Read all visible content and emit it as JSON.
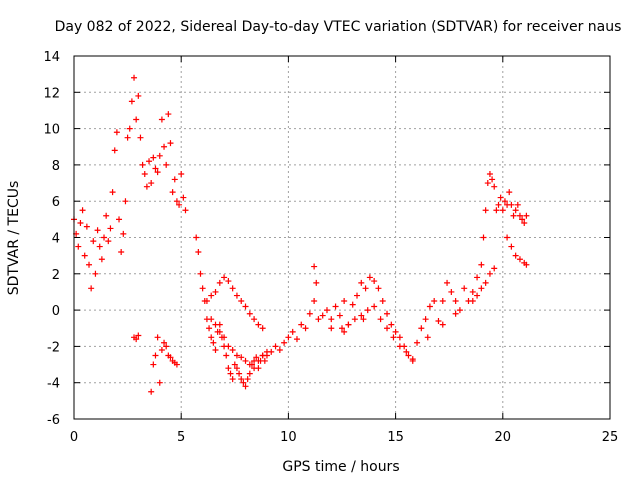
{
  "chart_data": {
    "type": "scatter",
    "title": "Day 082 of 2022, Sidereal Day-to-day VTEC variation (SDTVAR) for receiver naus",
    "xlabel": "GPS time / hours",
    "ylabel": "SDTVAR / TECUs",
    "xlim": [
      0,
      25
    ],
    "ylim": [
      -6,
      14
    ],
    "xticks": [
      "0",
      "5",
      "10",
      "15",
      "20",
      "25"
    ],
    "yticks": [
      "-6",
      "-4",
      "-2",
      "0",
      "2",
      "4",
      "6",
      "8",
      "10",
      "12",
      "14"
    ],
    "grid": true,
    "marker": "+",
    "color": "#ff0000",
    "series": [
      {
        "name": "SDTVAR",
        "x": [
          0.0,
          0.1,
          0.2,
          0.3,
          0.4,
          0.5,
          0.6,
          0.7,
          0.8,
          0.9,
          1.0,
          1.1,
          1.2,
          1.3,
          1.4,
          1.5,
          1.6,
          1.7,
          1.8,
          1.9,
          2.0,
          2.1,
          2.2,
          2.3,
          2.4,
          2.5,
          2.6,
          2.7,
          2.8,
          2.9,
          3.0,
          3.1,
          3.2,
          3.3,
          3.4,
          3.5,
          3.6,
          3.7,
          3.8,
          3.9,
          4.0,
          4.1,
          4.2,
          4.3,
          4.4,
          4.5,
          4.6,
          4.7,
          4.8,
          4.9,
          5.0,
          5.1,
          5.2,
          5.7,
          5.8,
          5.9,
          6.0,
          6.1,
          6.2,
          6.3,
          6.4,
          6.5,
          6.6,
          6.7,
          6.8,
          6.9,
          7.0,
          7.1,
          7.2,
          7.3,
          7.4,
          7.5,
          7.6,
          7.7,
          7.8,
          7.9,
          8.0,
          8.1,
          8.2,
          8.3,
          8.4,
          8.5,
          8.6,
          8.7,
          8.8,
          8.9,
          9.0,
          9.2,
          9.4,
          9.6,
          9.8,
          10.0,
          10.2,
          10.4,
          10.6,
          10.8,
          11.0,
          11.2,
          11.4,
          11.6,
          11.8,
          12.0,
          12.2,
          12.4,
          12.6,
          12.8,
          13.0,
          13.2,
          13.4,
          13.6,
          13.8,
          14.0,
          14.2,
          14.4,
          14.6,
          14.8,
          15.0,
          15.2,
          15.4,
          15.6,
          15.8,
          16.0,
          16.2,
          16.4,
          16.6,
          16.8,
          17.0,
          17.2,
          17.4,
          17.6,
          17.8,
          18.0,
          18.2,
          18.4,
          18.6,
          18.8,
          19.0,
          19.1,
          19.2,
          19.3,
          19.4,
          19.5,
          19.6,
          19.7,
          19.8,
          19.9,
          20.0,
          20.1,
          20.2,
          20.3,
          20.4,
          20.5,
          20.6,
          20.7,
          20.8,
          20.9,
          21.0,
          21.1,
          2.8,
          2.9,
          3.0,
          3.6,
          3.7,
          3.8,
          3.9,
          4.0,
          4.1,
          4.2,
          4.3,
          4.4,
          4.5,
          4.6,
          4.7,
          4.8,
          6.2,
          6.4,
          6.6,
          6.8,
          7.0,
          7.2,
          7.4,
          7.6,
          7.8,
          8.0,
          8.2,
          8.4,
          8.6,
          8.8,
          6.4,
          6.6,
          6.8,
          7.0,
          7.2,
          7.4,
          7.6,
          7.8,
          8.0,
          8.2,
          8.4,
          8.6,
          8.8,
          9.0,
          12.5,
          12.8,
          13.1,
          13.4,
          13.7,
          14.0,
          14.3,
          14.6,
          14.9,
          15.2,
          15.5,
          15.8,
          18.6,
          18.8,
          19.0,
          19.2,
          19.4,
          19.6,
          20.2,
          20.4,
          20.6,
          20.8,
          21.0,
          21.1,
          11.2,
          11.3,
          12.0,
          12.6,
          13.5,
          16.5,
          17.2,
          17.8
        ],
        "y": [
          5.0,
          4.2,
          3.5,
          4.8,
          5.5,
          3.0,
          4.6,
          2.5,
          1.2,
          3.8,
          2.0,
          4.4,
          3.5,
          2.8,
          4.0,
          5.2,
          3.8,
          4.5,
          6.5,
          8.8,
          9.8,
          5.0,
          3.2,
          4.2,
          6.0,
          9.5,
          10.0,
          11.5,
          12.8,
          10.5,
          11.8,
          9.5,
          8.0,
          7.5,
          6.8,
          8.2,
          7.0,
          8.4,
          7.8,
          7.6,
          8.5,
          10.5,
          9.0,
          8.0,
          10.8,
          9.2,
          6.5,
          7.2,
          6.0,
          5.8,
          7.5,
          6.2,
          5.5,
          4.0,
          3.2,
          2.0,
          1.2,
          0.5,
          -0.5,
          -1.0,
          -1.5,
          -1.8,
          -2.2,
          -1.2,
          -0.8,
          -1.5,
          -2.0,
          -2.5,
          -3.2,
          -3.5,
          -3.8,
          -3.0,
          -3.2,
          -3.5,
          -3.8,
          -4.0,
          -4.2,
          -3.8,
          -3.5,
          -3.0,
          -2.8,
          -2.6,
          -3.2,
          -2.8,
          -2.5,
          -2.8,
          -2.5,
          -2.3,
          -2.0,
          -2.2,
          -1.8,
          -1.5,
          -1.2,
          -1.6,
          -0.8,
          -1.0,
          -0.2,
          0.5,
          -0.5,
          -0.3,
          0.0,
          -0.5,
          0.2,
          -0.3,
          0.5,
          -0.8,
          0.3,
          0.8,
          1.5,
          1.2,
          1.8,
          1.6,
          1.2,
          0.5,
          -0.2,
          -0.8,
          -1.2,
          -1.5,
          -2.0,
          -2.5,
          -2.8,
          -1.8,
          -1.0,
          -0.5,
          0.2,
          0.5,
          -0.6,
          0.5,
          1.5,
          1.0,
          0.5,
          0.0,
          1.2,
          0.5,
          1.0,
          1.8,
          2.5,
          4.0,
          5.5,
          7.0,
          7.5,
          7.2,
          6.8,
          5.5,
          5.8,
          6.2,
          5.5,
          6.0,
          5.8,
          6.5,
          5.8,
          5.2,
          5.5,
          5.8,
          5.2,
          5.0,
          4.8,
          5.2,
          -1.5,
          -1.6,
          -1.4,
          -4.5,
          -3.0,
          -2.5,
          -1.5,
          -4.0,
          -2.2,
          -1.8,
          -2.0,
          -2.5,
          -2.6,
          -2.8,
          -2.9,
          -3.0,
          0.5,
          0.8,
          1.0,
          1.5,
          1.8,
          1.6,
          1.2,
          0.8,
          0.5,
          0.2,
          -0.2,
          -0.5,
          -0.8,
          -1.0,
          -0.5,
          -0.8,
          -1.2,
          -1.5,
          -2.0,
          -2.2,
          -2.5,
          -2.6,
          -2.8,
          -3.0,
          -3.2,
          -2.8,
          -2.5,
          -2.3,
          -1.0,
          -0.8,
          -0.5,
          -0.3,
          0.0,
          0.2,
          -0.5,
          -1.0,
          -1.5,
          -2.0,
          -2.3,
          -2.7,
          0.5,
          0.8,
          1.2,
          1.5,
          2.0,
          2.3,
          4.0,
          3.5,
          3.0,
          2.8,
          2.6,
          2.5,
          2.4,
          1.5,
          -1.0,
          -1.2,
          -0.5,
          -1.5,
          -0.8,
          -0.2
        ]
      }
    ]
  }
}
